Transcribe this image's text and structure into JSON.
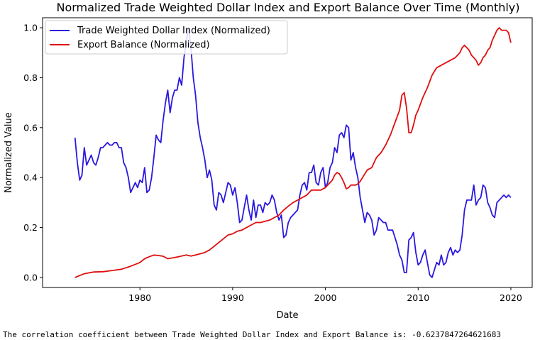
{
  "colors": {
    "dollar_line": "#2a18e0",
    "export_line": "#e00e0e"
  },
  "footer_text": "The correlation coefficient between Trade Weighted Dollar Index and Export Balance is: -0.6237847264621683",
  "chart_data": {
    "type": "line",
    "title": "Normalized Trade Weighted Dollar Index and Export Balance Over Time (Monthly)",
    "xlabel": "Date",
    "ylabel": "Normalized Value",
    "xlim": [
      1969.5,
      2022.3
    ],
    "ylim": [
      -0.04,
      1.04
    ],
    "x_ticks": [
      1980,
      1990,
      2000,
      2010,
      2020
    ],
    "x_tick_labels": [
      "1980",
      "1990",
      "2000",
      "2010",
      "2020"
    ],
    "y_ticks": [
      0.0,
      0.2,
      0.4,
      0.6,
      0.8,
      1.0
    ],
    "y_tick_labels": [
      "0.0",
      "0.2",
      "0.4",
      "0.6",
      "0.8",
      "1.0"
    ],
    "legend_position": "top-left",
    "series": [
      {
        "name": "Trade Weighted Dollar Index (Normalized)",
        "x": [
          1973.0,
          1973.25,
          1973.5,
          1973.75,
          1974.0,
          1974.25,
          1974.5,
          1974.75,
          1975.0,
          1975.25,
          1975.5,
          1975.75,
          1976.0,
          1976.25,
          1976.5,
          1976.75,
          1977.0,
          1977.25,
          1977.5,
          1977.75,
          1978.0,
          1978.25,
          1978.5,
          1978.75,
          1979.0,
          1979.25,
          1979.5,
          1979.75,
          1980.0,
          1980.25,
          1980.5,
          1980.75,
          1981.0,
          1981.25,
          1981.5,
          1981.75,
          1982.0,
          1982.25,
          1982.5,
          1982.75,
          1983.0,
          1983.25,
          1983.5,
          1983.75,
          1984.0,
          1984.25,
          1984.5,
          1984.75,
          1985.0,
          1985.25,
          1985.5,
          1985.75,
          1986.0,
          1986.25,
          1986.5,
          1986.75,
          1987.0,
          1987.25,
          1987.5,
          1987.75,
          1988.0,
          1988.25,
          1988.5,
          1988.75,
          1989.0,
          1989.25,
          1989.5,
          1989.75,
          1990.0,
          1990.25,
          1990.5,
          1990.75,
          1991.0,
          1991.25,
          1991.5,
          1991.75,
          1992.0,
          1992.25,
          1992.5,
          1992.75,
          1993.0,
          1993.25,
          1993.5,
          1993.75,
          1994.0,
          1994.25,
          1994.5,
          1994.75,
          1995.0,
          1995.25,
          1995.5,
          1995.75,
          1996.0,
          1996.25,
          1996.5,
          1996.75,
          1997.0,
          1997.25,
          1997.5,
          1997.75,
          1998.0,
          1998.25,
          1998.5,
          1998.75,
          1999.0,
          1999.25,
          1999.5,
          1999.75,
          2000.0,
          2000.25,
          2000.5,
          2000.75,
          2001.0,
          2001.25,
          2001.5,
          2001.75,
          2002.0,
          2002.25,
          2002.5,
          2002.75,
          2003.0,
          2003.25,
          2003.5,
          2003.75,
          2004.0,
          2004.25,
          2004.5,
          2004.75,
          2005.0,
          2005.25,
          2005.5,
          2005.75,
          2006.0,
          2006.25,
          2006.5,
          2006.75,
          2007.0,
          2007.25,
          2007.5,
          2007.75,
          2008.0,
          2008.25,
          2008.5,
          2008.75,
          2009.0,
          2009.25,
          2009.5,
          2009.75,
          2010.0,
          2010.25,
          2010.5,
          2010.75,
          2011.0,
          2011.25,
          2011.5,
          2011.75,
          2012.0,
          2012.25,
          2012.5,
          2012.75,
          2013.0,
          2013.25,
          2013.5,
          2013.75,
          2014.0,
          2014.25,
          2014.5,
          2014.75,
          2015.0,
          2015.25,
          2015.5,
          2015.75,
          2016.0,
          2016.25,
          2016.5,
          2016.75,
          2017.0,
          2017.25,
          2017.5,
          2017.75,
          2018.0,
          2018.25,
          2018.5,
          2018.75,
          2019.0,
          2019.25,
          2019.5,
          2019.75,
          2020.0
        ],
        "values": [
          0.56,
          0.46,
          0.39,
          0.41,
          0.52,
          0.45,
          0.47,
          0.49,
          0.46,
          0.45,
          0.48,
          0.52,
          0.52,
          0.53,
          0.54,
          0.53,
          0.53,
          0.54,
          0.54,
          0.52,
          0.52,
          0.46,
          0.44,
          0.4,
          0.34,
          0.36,
          0.38,
          0.36,
          0.39,
          0.38,
          0.44,
          0.34,
          0.35,
          0.4,
          0.48,
          0.57,
          0.55,
          0.54,
          0.63,
          0.7,
          0.75,
          0.66,
          0.72,
          0.75,
          0.75,
          0.8,
          0.77,
          0.88,
          0.95,
          1.0,
          0.92,
          0.8,
          0.73,
          0.62,
          0.56,
          0.52,
          0.47,
          0.4,
          0.43,
          0.39,
          0.29,
          0.27,
          0.34,
          0.33,
          0.3,
          0.34,
          0.38,
          0.37,
          0.33,
          0.36,
          0.3,
          0.22,
          0.23,
          0.28,
          0.33,
          0.27,
          0.23,
          0.31,
          0.24,
          0.29,
          0.29,
          0.26,
          0.3,
          0.29,
          0.3,
          0.33,
          0.31,
          0.26,
          0.23,
          0.25,
          0.16,
          0.17,
          0.22,
          0.24,
          0.25,
          0.26,
          0.27,
          0.33,
          0.37,
          0.38,
          0.35,
          0.42,
          0.42,
          0.45,
          0.38,
          0.37,
          0.42,
          0.44,
          0.36,
          0.38,
          0.44,
          0.46,
          0.52,
          0.5,
          0.57,
          0.58,
          0.56,
          0.61,
          0.6,
          0.47,
          0.5,
          0.44,
          0.4,
          0.32,
          0.27,
          0.22,
          0.26,
          0.25,
          0.23,
          0.17,
          0.19,
          0.24,
          0.23,
          0.22,
          0.22,
          0.19,
          0.19,
          0.19,
          0.16,
          0.13,
          0.09,
          0.07,
          0.02,
          0.02,
          0.15,
          0.16,
          0.18,
          0.1,
          0.05,
          0.06,
          0.09,
          0.11,
          0.06,
          0.01,
          0.0,
          0.03,
          0.06,
          0.05,
          0.09,
          0.05,
          0.06,
          0.1,
          0.12,
          0.09,
          0.11,
          0.1,
          0.11,
          0.17,
          0.27,
          0.31,
          0.31,
          0.31,
          0.37,
          0.29,
          0.31,
          0.32,
          0.37,
          0.36,
          0.3,
          0.28,
          0.25,
          0.24,
          0.3,
          0.31,
          0.32,
          0.33,
          0.32,
          0.33,
          0.32
        ]
      },
      {
        "name": "Export Balance (Normalized)",
        "x": [
          1973.0,
          1974.0,
          1975.0,
          1976.0,
          1977.0,
          1978.0,
          1979.0,
          1980.0,
          1980.5,
          1981.0,
          1981.5,
          1982.0,
          1982.5,
          1983.0,
          1984.0,
          1985.0,
          1985.5,
          1986.0,
          1986.5,
          1987.0,
          1987.5,
          1988.0,
          1988.5,
          1989.0,
          1989.5,
          1990.0,
          1990.5,
          1991.0,
          1991.5,
          1992.0,
          1992.5,
          1993.0,
          1993.5,
          1994.0,
          1994.5,
          1995.0,
          1995.5,
          1996.0,
          1996.5,
          1997.0,
          1997.5,
          1998.0,
          1998.5,
          1999.0,
          1999.5,
          2000.0,
          2000.25,
          2000.5,
          2000.75,
          2001.0,
          2001.25,
          2001.5,
          2001.75,
          2002.0,
          2002.25,
          2002.5,
          2002.75,
          2003.0,
          2003.25,
          2003.5,
          2003.75,
          2004.0,
          2004.5,
          2005.0,
          2005.5,
          2006.0,
          2006.5,
          2007.0,
          2007.5,
          2008.0,
          2008.25,
          2008.5,
          2008.75,
          2009.0,
          2009.25,
          2009.5,
          2009.75,
          2010.0,
          2010.5,
          2011.0,
          2011.5,
          2012.0,
          2012.5,
          2013.0,
          2013.5,
          2014.0,
          2014.25,
          2014.5,
          2014.75,
          2015.0,
          2015.25,
          2015.5,
          2015.75,
          2016.0,
          2016.25,
          2016.5,
          2016.75,
          2017.0,
          2017.25,
          2017.5,
          2017.75,
          2018.0,
          2018.25,
          2018.5,
          2018.75,
          2019.0,
          2019.25,
          2019.5,
          2019.75,
          2020.0
        ],
        "values": [
          0.0,
          0.015,
          0.022,
          0.023,
          0.028,
          0.033,
          0.045,
          0.06,
          0.075,
          0.083,
          0.09,
          0.088,
          0.085,
          0.075,
          0.082,
          0.09,
          0.086,
          0.09,
          0.095,
          0.1,
          0.11,
          0.125,
          0.14,
          0.155,
          0.17,
          0.175,
          0.185,
          0.19,
          0.2,
          0.21,
          0.22,
          0.22,
          0.225,
          0.23,
          0.24,
          0.25,
          0.27,
          0.285,
          0.3,
          0.31,
          0.32,
          0.33,
          0.35,
          0.35,
          0.35,
          0.36,
          0.37,
          0.38,
          0.39,
          0.41,
          0.42,
          0.415,
          0.4,
          0.38,
          0.355,
          0.36,
          0.37,
          0.37,
          0.37,
          0.375,
          0.385,
          0.4,
          0.43,
          0.44,
          0.48,
          0.5,
          0.53,
          0.57,
          0.62,
          0.67,
          0.73,
          0.74,
          0.68,
          0.58,
          0.58,
          0.61,
          0.65,
          0.67,
          0.72,
          0.76,
          0.81,
          0.84,
          0.85,
          0.86,
          0.87,
          0.88,
          0.89,
          0.9,
          0.92,
          0.93,
          0.92,
          0.91,
          0.89,
          0.88,
          0.87,
          0.85,
          0.86,
          0.88,
          0.89,
          0.91,
          0.92,
          0.95,
          0.97,
          0.99,
          1.0,
          0.99,
          0.99,
          0.99,
          0.98,
          0.94
        ]
      }
    ]
  }
}
